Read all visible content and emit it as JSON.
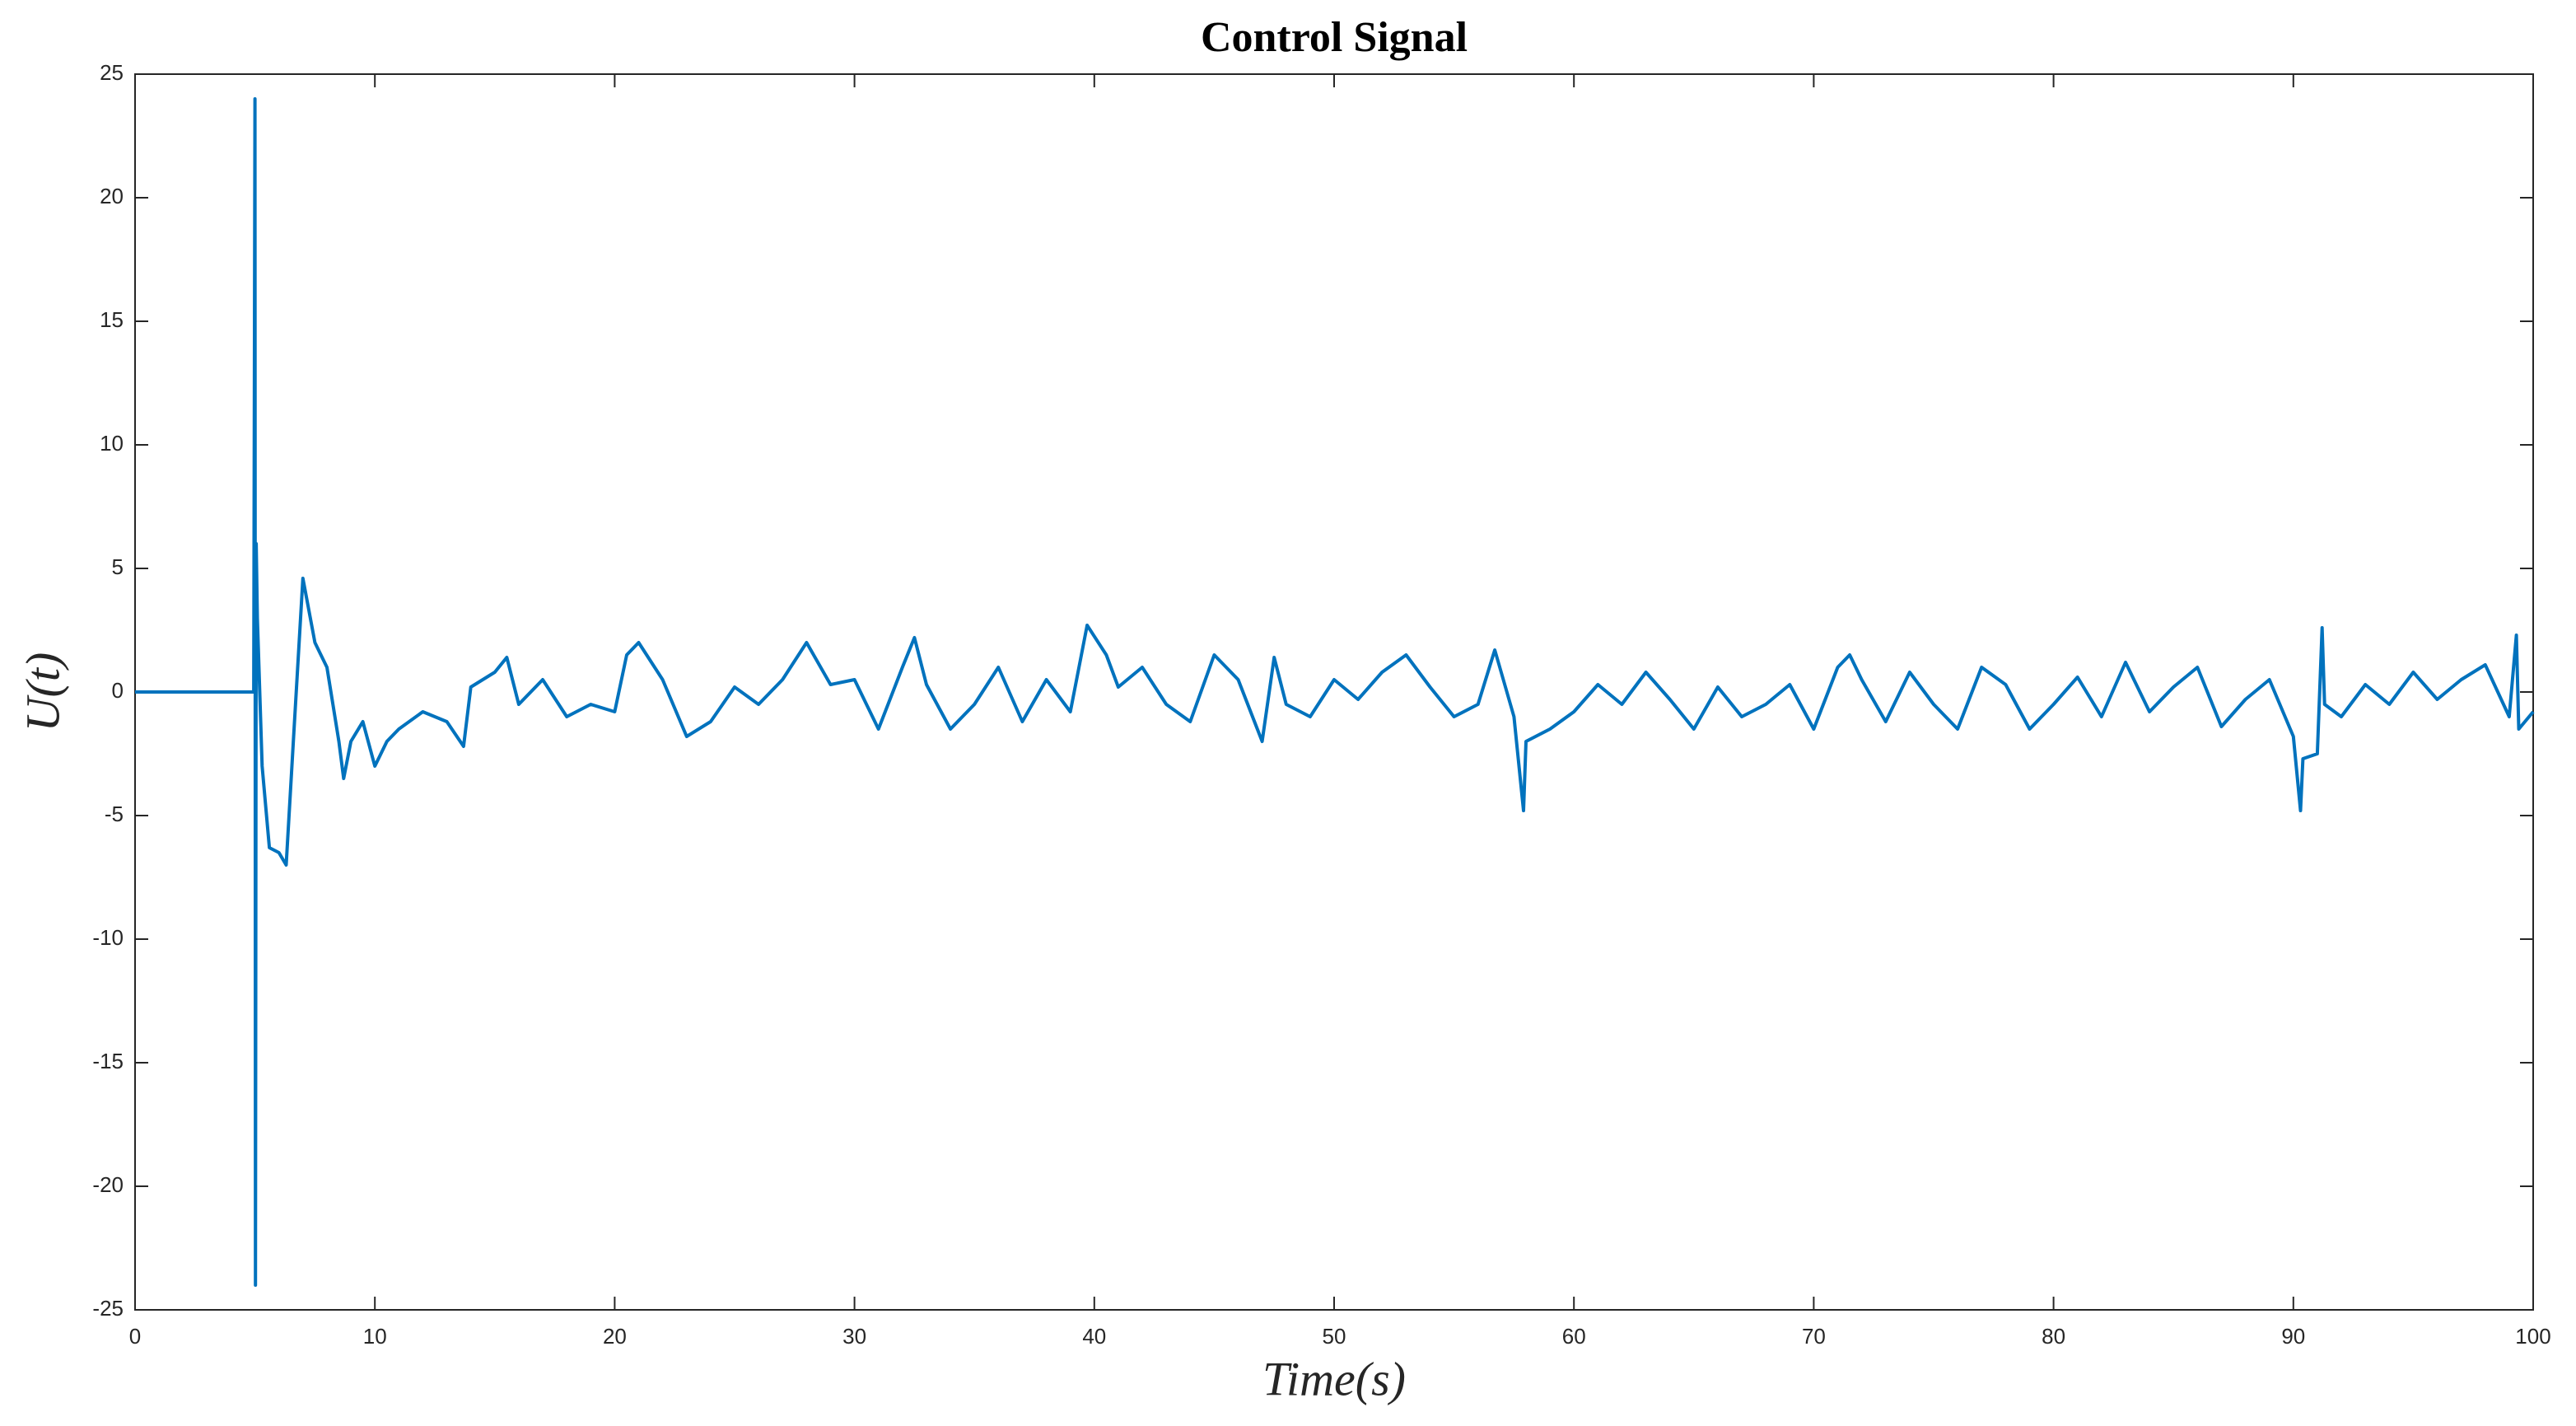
{
  "chart_data": {
    "type": "line",
    "title": "Control Signal",
    "xlabel": "Time(s)",
    "ylabel": "U(t)",
    "series": [
      {
        "name": "U(t)",
        "color": "#0072bd",
        "x": [
          0,
          4.95,
          5.0,
          5.02,
          5.05,
          5.1,
          5.3,
          5.6,
          6.0,
          6.3,
          6.6,
          7.0,
          7.5,
          8.0,
          8.5,
          8.7,
          9.0,
          9.5,
          10,
          10.5,
          11,
          12,
          13,
          13.7,
          14,
          15,
          15.5,
          16,
          17,
          18,
          19,
          20,
          20.5,
          21,
          22,
          23,
          24,
          25,
          26,
          27,
          28,
          29,
          30,
          31,
          32,
          32.5,
          33,
          34,
          35,
          36,
          37,
          38,
          39,
          39.7,
          40.5,
          41,
          42,
          43,
          44,
          45,
          46,
          47,
          47.5,
          48,
          49,
          50,
          51,
          52,
          53,
          54,
          55,
          56,
          56.7,
          57.5,
          57.9,
          58,
          59,
          60,
          61,
          62,
          63,
          64,
          65,
          66,
          67,
          68,
          69,
          70,
          71,
          71.5,
          72,
          73,
          74,
          75,
          76,
          77,
          78,
          79,
          80,
          81,
          82,
          83,
          84,
          85,
          86,
          87,
          88,
          89,
          90,
          90.3,
          90.4,
          91,
          91.2,
          91.3,
          92,
          93,
          94,
          95,
          96,
          97,
          98,
          99,
          99.3,
          99.4,
          100
        ],
        "values": [
          0,
          0,
          24,
          -24,
          6,
          3,
          -3,
          -6.3,
          -6.5,
          -7,
          -2,
          4.6,
          2,
          1,
          -2,
          -3.5,
          -2,
          -1.2,
          -3,
          -2,
          -1.5,
          -0.8,
          -1.2,
          -2.2,
          0.2,
          0.8,
          1.4,
          -0.5,
          0.5,
          -1.0,
          -0.5,
          -0.8,
          1.5,
          2.0,
          0.5,
          -1.8,
          -1.2,
          0.2,
          -0.5,
          0.5,
          2.0,
          0.3,
          0.5,
          -1.5,
          1.0,
          2.2,
          0.3,
          -1.5,
          -0.5,
          1.0,
          -1.2,
          0.5,
          -0.8,
          2.7,
          1.5,
          0.2,
          1.0,
          -0.5,
          -1.2,
          1.5,
          0.5,
          -2.0,
          1.4,
          -0.5,
          -1.0,
          0.5,
          -0.3,
          0.8,
          1.5,
          0.2,
          -1.0,
          -0.5,
          1.7,
          -1.0,
          -4.8,
          -2.0,
          -1.5,
          -0.8,
          0.3,
          -0.5,
          0.8,
          -0.3,
          -1.5,
          0.2,
          -1.0,
          -0.5,
          0.3,
          -1.5,
          1.0,
          1.5,
          0.5,
          -1.2,
          0.8,
          -0.5,
          -1.5,
          1.0,
          0.3,
          -1.5,
          -0.5,
          0.6,
          -1.0,
          1.2,
          -0.8,
          0.2,
          1.0,
          -1.4,
          -0.3,
          0.5,
          -1.8,
          -4.8,
          -2.7,
          -2.5,
          2.6,
          -0.5,
          -1.0,
          0.3,
          -0.5,
          0.8,
          -0.3,
          0.5,
          1.1,
          -1.0,
          2.3,
          -1.5,
          -0.8
        ]
      }
    ],
    "xlim": [
      0,
      100
    ],
    "xticks": [
      0,
      10,
      20,
      30,
      40,
      50,
      60,
      70,
      80,
      90,
      100
    ],
    "ylim": [
      -25,
      25
    ],
    "yticks": [
      -25,
      -20,
      -15,
      -10,
      -5,
      0,
      5,
      10,
      15,
      20,
      25
    ],
    "grid": false
  }
}
